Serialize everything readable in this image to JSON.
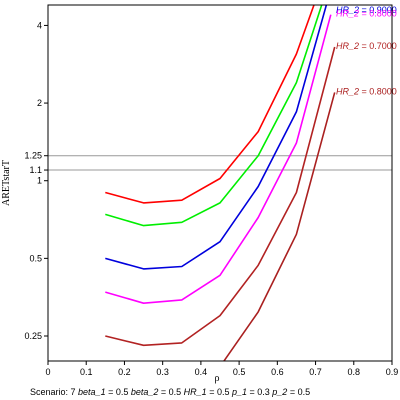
{
  "chart_data": {
    "type": "line",
    "xlabel": "ρ",
    "ylabel": "ARETstarT",
    "xlim": [
      0,
      0.9
    ],
    "ylim": [
      0.2,
      4.8
    ],
    "y_scale": "log",
    "x_ticks": [
      "0",
      "0.1",
      "0.2",
      "0.3",
      "0.4",
      "0.5",
      "0.6",
      "0.7",
      "0.8",
      "0.9"
    ],
    "y_ticks": [
      {
        "value": 0.25,
        "label": "0.25"
      },
      {
        "value": 0.5,
        "label": "0.5"
      },
      {
        "value": 1,
        "label": "1"
      },
      {
        "value": 1.1,
        "label": "1.1"
      },
      {
        "value": 1.25,
        "label": "1.25"
      },
      {
        "value": 2,
        "label": "2"
      },
      {
        "value": 4,
        "label": "4"
      }
    ],
    "reference_lines": [
      1.1,
      1.25
    ],
    "series": [
      {
        "name": "0.9000",
        "color": "#ff0000",
        "labeled": false,
        "points": [
          [
            0.15,
            0.9
          ],
          [
            0.25,
            0.82
          ],
          [
            0.35,
            0.84
          ],
          [
            0.45,
            1.02
          ],
          [
            0.55,
            1.55
          ],
          [
            0.65,
            3.1
          ],
          [
            0.7,
            5.0
          ]
        ]
      },
      {
        "name": "0.9000",
        "color": "#00ee00",
        "labeled": false,
        "points": [
          [
            0.15,
            0.74
          ],
          [
            0.25,
            0.67
          ],
          [
            0.35,
            0.69
          ],
          [
            0.45,
            0.82
          ],
          [
            0.55,
            1.25
          ],
          [
            0.65,
            2.4
          ],
          [
            0.72,
            5.0
          ]
        ]
      },
      {
        "name": "0.9000",
        "color": "#0000dd",
        "labeled": true,
        "points": [
          [
            0.15,
            0.5
          ],
          [
            0.25,
            0.455
          ],
          [
            0.35,
            0.465
          ],
          [
            0.45,
            0.58
          ],
          [
            0.55,
            0.95
          ],
          [
            0.65,
            1.85
          ],
          [
            0.73,
            4.9
          ]
        ]
      },
      {
        "name": "0.8000",
        "color": "#ff00ff",
        "labeled": true,
        "points": [
          [
            0.15,
            0.37
          ],
          [
            0.25,
            0.335
          ],
          [
            0.35,
            0.345
          ],
          [
            0.45,
            0.43
          ],
          [
            0.55,
            0.72
          ],
          [
            0.65,
            1.4
          ],
          [
            0.74,
            4.4
          ]
        ]
      },
      {
        "name": "0.7000",
        "color": "#b22222",
        "labeled": true,
        "points": [
          [
            0.15,
            0.25
          ],
          [
            0.25,
            0.23
          ],
          [
            0.35,
            0.235
          ],
          [
            0.45,
            0.3
          ],
          [
            0.55,
            0.47
          ],
          [
            0.65,
            0.9
          ],
          [
            0.75,
            3.3
          ]
        ]
      },
      {
        "name": "0.8000",
        "color": "#aa2020",
        "labeled": true,
        "points": [
          [
            0.45,
            0.19
          ],
          [
            0.55,
            0.31
          ],
          [
            0.65,
            0.62
          ],
          [
            0.75,
            2.2
          ]
        ]
      }
    ],
    "label_prefix": "HR_2"
  },
  "footer": {
    "scenario_label": "Scenario:",
    "scenario_value": "7",
    "params": [
      {
        "name": "beta_1",
        "value": "0.5"
      },
      {
        "name": "beta_2",
        "value": "0.5"
      },
      {
        "name": "HR_1",
        "value": "0.5"
      },
      {
        "name": "p_1",
        "value": "0.3"
      },
      {
        "name": "p_2",
        "value": "0.5"
      }
    ]
  }
}
